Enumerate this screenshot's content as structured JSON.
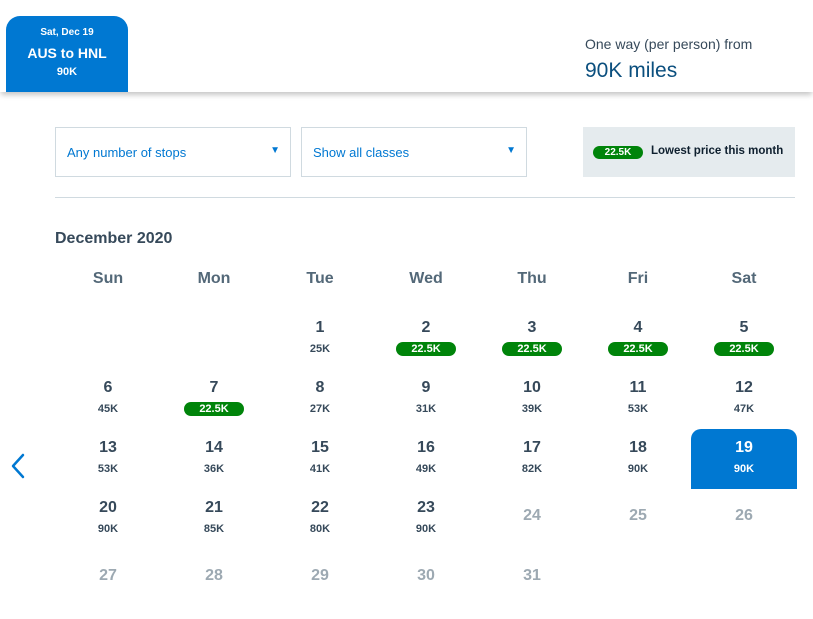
{
  "trip": {
    "date": "Sat, Dec 19",
    "route": "AUS to HNL",
    "price": "90K"
  },
  "fare": {
    "label": "One way (per person) from",
    "amount": "90K miles"
  },
  "filters": {
    "stops": "Any number of stops",
    "classes": "Show all classes"
  },
  "legend": {
    "price": "22.5K",
    "label": "Lowest price this month"
  },
  "calendar": {
    "month": "December 2020",
    "weekdays": [
      "Sun",
      "Mon",
      "Tue",
      "Wed",
      "Thu",
      "Fri",
      "Sat"
    ],
    "weeks": [
      [
        null,
        null,
        {
          "day": "1",
          "price": "25K"
        },
        {
          "day": "2",
          "price": "22.5K",
          "lowest": true
        },
        {
          "day": "3",
          "price": "22.5K",
          "lowest": true
        },
        {
          "day": "4",
          "price": "22.5K",
          "lowest": true
        },
        {
          "day": "5",
          "price": "22.5K",
          "lowest": true
        }
      ],
      [
        {
          "day": "6",
          "price": "45K"
        },
        {
          "day": "7",
          "price": "22.5K",
          "lowest": true
        },
        {
          "day": "8",
          "price": "27K"
        },
        {
          "day": "9",
          "price": "31K"
        },
        {
          "day": "10",
          "price": "39K"
        },
        {
          "day": "11",
          "price": "53K"
        },
        {
          "day": "12",
          "price": "47K"
        }
      ],
      [
        {
          "day": "13",
          "price": "53K"
        },
        {
          "day": "14",
          "price": "36K"
        },
        {
          "day": "15",
          "price": "41K"
        },
        {
          "day": "16",
          "price": "49K"
        },
        {
          "day": "17",
          "price": "82K"
        },
        {
          "day": "18",
          "price": "90K"
        },
        {
          "day": "19",
          "price": "90K",
          "selected": true
        }
      ],
      [
        {
          "day": "20",
          "price": "90K"
        },
        {
          "day": "21",
          "price": "85K"
        },
        {
          "day": "22",
          "price": "80K"
        },
        {
          "day": "23",
          "price": "90K"
        },
        {
          "day": "24",
          "disabled": true
        },
        {
          "day": "25",
          "disabled": true
        },
        {
          "day": "26",
          "disabled": true
        }
      ],
      [
        {
          "day": "27",
          "disabled": true
        },
        {
          "day": "28",
          "disabled": true
        },
        {
          "day": "29",
          "disabled": true
        },
        {
          "day": "30",
          "disabled": true
        },
        {
          "day": "31",
          "disabled": true
        },
        null,
        null
      ]
    ]
  },
  "icons": {
    "previous": "chevron-left-icon",
    "dropdown": "caret-down-icon"
  },
  "colors": {
    "accent": "#0078d2",
    "lowest_price": "#00840a",
    "text": "#36495a",
    "disabled": "#9da9b2"
  }
}
